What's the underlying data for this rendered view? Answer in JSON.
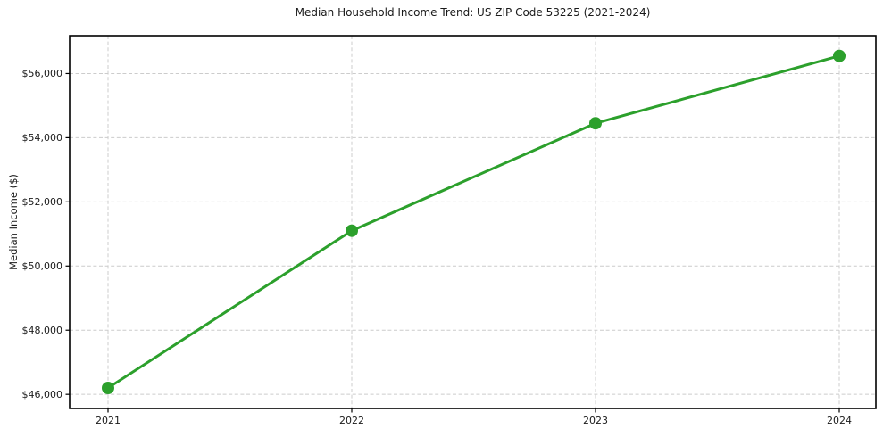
{
  "page": {
    "background_color": "#ffffff"
  },
  "chart_data": {
    "type": "line",
    "title": "Median Household Income Trend: US ZIP Code 53225 (2021-2024)",
    "xlabel": "",
    "ylabel": "Median Income ($)",
    "categories": [
      "2021",
      "2022",
      "2023",
      "2024"
    ],
    "values": [
      46200,
      51100,
      54450,
      56550
    ],
    "y_ticks": [
      46000,
      48000,
      50000,
      52000,
      54000,
      56000
    ],
    "y_tick_labels": [
      "$46,000",
      "$48,000",
      "$50,000",
      "$52,000",
      "$54,000",
      "$56,000"
    ],
    "ylim": [
      45560,
      57180
    ],
    "grid": true,
    "grid_style": "dashed",
    "legend": false,
    "line_color": "#2ca02c",
    "marker": "circle",
    "grid_color": "#cccccc",
    "axis_color": "#000000",
    "text_color": "#1a1a1a"
  }
}
